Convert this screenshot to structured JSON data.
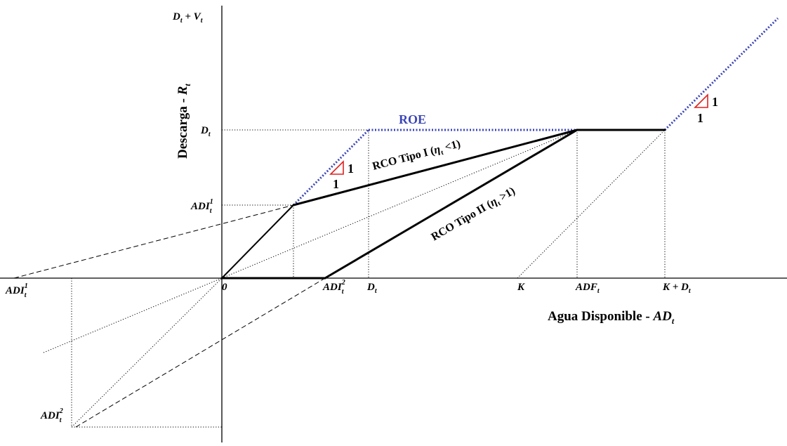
{
  "diagram": {
    "y_axis_title_main": "Descarga - ",
    "y_axis_title_var": "R",
    "y_axis_title_sub": "t",
    "x_axis_title_main": "Agua Disponible - ",
    "x_axis_title_var": "AD",
    "x_axis_title_sub": "t",
    "y_top_label_a": "D",
    "y_top_label_a_sub": "t",
    "y_top_label_b": " + V",
    "y_top_label_b_sub": "t",
    "y_dt_label": "D",
    "y_dt_label_sub": "t",
    "y_adi1_label": "ADI",
    "y_adi1_sup": "1",
    "y_adi1_sub": "t",
    "origin_label": "0",
    "x_adi2_label": "ADI",
    "x_adi2_sup": "2",
    "x_adi2_sub": "t",
    "x_dt_label": "D",
    "x_dt_sub": "t",
    "x_k_label": "K",
    "x_adf_label": "ADF",
    "x_adf_sub": "t",
    "x_kdt_label": "K + D",
    "x_kdt_sub": "t",
    "neg_adi1_label": "ADI",
    "neg_adi1_sup": "1",
    "neg_adi1_sub": "t",
    "neg_adi2_label": "ADI",
    "neg_adi2_sup": "2",
    "neg_adi2_sub": "t",
    "roe_label": "ROE",
    "rco1_label_a": "RCO Tipo I (",
    "rco1_label_eta": "η",
    "rco1_label_sub": "t",
    "rco1_label_b": " <1)",
    "rco2_label_a": "RCO Tipo II (",
    "rco2_label_eta": "η",
    "rco2_label_sub": "t",
    "rco2_label_b": " >1)",
    "slope_one_a": "1",
    "slope_one_b": "1",
    "slope_one_c": "1",
    "slope_one_d": "1",
    "colors": {
      "roe": "#3b45b8",
      "slope_triangle": "#e02020",
      "lines": "#000000"
    }
  }
}
